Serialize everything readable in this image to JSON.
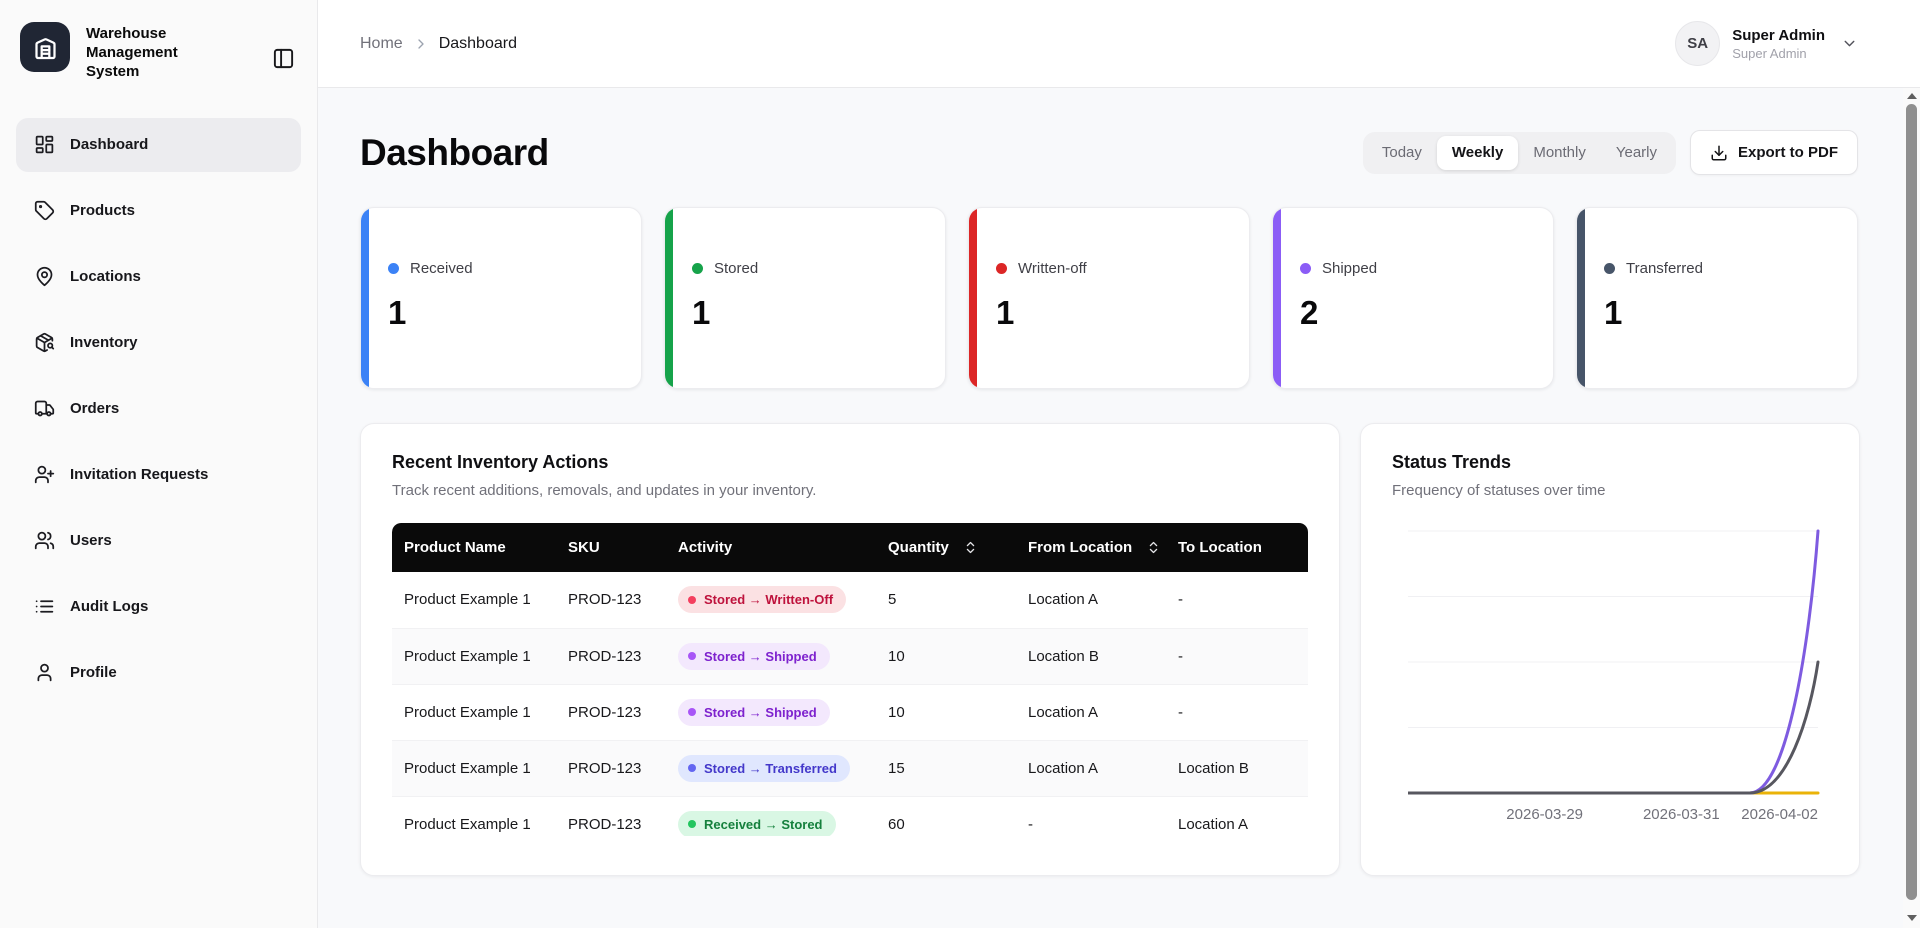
{
  "app": {
    "title": "Warehouse Management System",
    "logo_icon": "warehouse-icon"
  },
  "sidebar": {
    "toggle_icon": "panel-left-icon",
    "items": [
      {
        "label": "Dashboard",
        "icon": "layout-dashboard-icon",
        "active": true
      },
      {
        "label": "Products",
        "icon": "tag-icon",
        "active": false
      },
      {
        "label": "Locations",
        "icon": "map-pin-icon",
        "active": false
      },
      {
        "label": "Inventory",
        "icon": "package-search-icon",
        "active": false
      },
      {
        "label": "Orders",
        "icon": "truck-icon",
        "active": false
      },
      {
        "label": "Invitation Requests",
        "icon": "user-plus-icon",
        "active": false
      },
      {
        "label": "Users",
        "icon": "users-icon",
        "active": false
      },
      {
        "label": "Audit Logs",
        "icon": "list-icon",
        "active": false
      },
      {
        "label": "Profile",
        "icon": "user-icon",
        "active": false
      }
    ]
  },
  "header": {
    "breadcrumb": {
      "home": "Home",
      "separator_icon": "chevron-right-icon",
      "current": "Dashboard"
    },
    "user": {
      "initials": "SA",
      "name": "Super Admin",
      "role": "Super Admin",
      "menu_icon": "chevron-down-icon"
    }
  },
  "page": {
    "title": "Dashboard"
  },
  "toolbar": {
    "range_options": [
      {
        "label": "Today",
        "active": false
      },
      {
        "label": "Weekly",
        "active": true
      },
      {
        "label": "Monthly",
        "active": false
      },
      {
        "label": "Yearly",
        "active": false
      }
    ],
    "export_label": "Export to PDF",
    "export_icon": "download-icon"
  },
  "status_cards": [
    {
      "label": "Received",
      "value": "1",
      "color": "#3b82f6"
    },
    {
      "label": "Stored",
      "value": "1",
      "color": "#16a34a"
    },
    {
      "label": "Written-off",
      "value": "1",
      "color": "#dc2626"
    },
    {
      "label": "Shipped",
      "value": "2",
      "color": "#8b5cf6"
    },
    {
      "label": "Transferred",
      "value": "1",
      "color": "#475569"
    }
  ],
  "inventory_panel": {
    "title": "Recent Inventory Actions",
    "subtitle": "Track recent additions, removals, and updates in your inventory.",
    "table": {
      "headers": [
        {
          "label": "Product Name",
          "sortable": false
        },
        {
          "label": "SKU",
          "sortable": false
        },
        {
          "label": "Activity",
          "sortable": false
        },
        {
          "label": "Quantity",
          "sortable": true
        },
        {
          "label": "From Location",
          "sortable": true
        },
        {
          "label": "To Location",
          "sortable": false
        }
      ],
      "rows": [
        {
          "product": "Product Example 1",
          "sku": "PROD-123",
          "activity": {
            "label": "Stored → Written-Off",
            "bg": "#fbe1e3",
            "text": "#be123c",
            "dot": "#f43f5e"
          },
          "quantity": "5",
          "from": "Location A",
          "to": "-"
        },
        {
          "product": "Product Example 1",
          "sku": "PROD-123",
          "activity": {
            "label": "Stored → Shipped",
            "bg": "#f3e8fd",
            "text": "#7e22ce",
            "dot": "#a855f7"
          },
          "quantity": "10",
          "from": "Location B",
          "to": "-"
        },
        {
          "product": "Product Example 1",
          "sku": "PROD-123",
          "activity": {
            "label": "Stored → Shipped",
            "bg": "#f3e8fd",
            "text": "#7e22ce",
            "dot": "#a855f7"
          },
          "quantity": "10",
          "from": "Location A",
          "to": "-"
        },
        {
          "product": "Product Example 1",
          "sku": "PROD-123",
          "activity": {
            "label": "Stored → Transferred",
            "bg": "#e0e7fe",
            "text": "#4338ca",
            "dot": "#6366f1"
          },
          "quantity": "15",
          "from": "Location A",
          "to": "Location B"
        },
        {
          "product": "Product Example 1",
          "sku": "PROD-123",
          "activity": {
            "label": "Received → Stored",
            "bg": "#d9f7e4",
            "text": "#15803d",
            "dot": "#22c55e"
          },
          "quantity": "60",
          "from": "-",
          "to": "Location A"
        }
      ]
    }
  },
  "trends_panel": {
    "title": "Status Trends",
    "subtitle": "Frequency of statuses over time"
  },
  "chart_data": {
    "type": "line",
    "title": "Status Trends",
    "subtitle": "Frequency of statuses over time",
    "x": [
      "2026-03-27",
      "2026-03-28",
      "2026-03-29",
      "2026-03-30",
      "2026-03-31",
      "2026-04-01",
      "2026-04-02"
    ],
    "tick_indices": [
      2,
      4,
      6
    ],
    "tick_labels": [
      "2026-03-29",
      "2026-03-31",
      "2026-04-02"
    ],
    "series": [
      {
        "name": "flat-zero-yellow",
        "color": "#eab308",
        "values": [
          0,
          0,
          0,
          0,
          0,
          0,
          0
        ]
      },
      {
        "name": "shipped-purple",
        "color": "#7e5be0",
        "values": [
          0,
          0,
          0,
          0,
          0,
          0,
          2
        ]
      },
      {
        "name": "transferred-gray",
        "color": "#57575f",
        "values": [
          0,
          0,
          0,
          0,
          0,
          0,
          1
        ]
      }
    ],
    "ylim": [
      0,
      2
    ],
    "grid_values": [
      0.5,
      1,
      1.5,
      2
    ],
    "grid": true,
    "legend": false
  }
}
